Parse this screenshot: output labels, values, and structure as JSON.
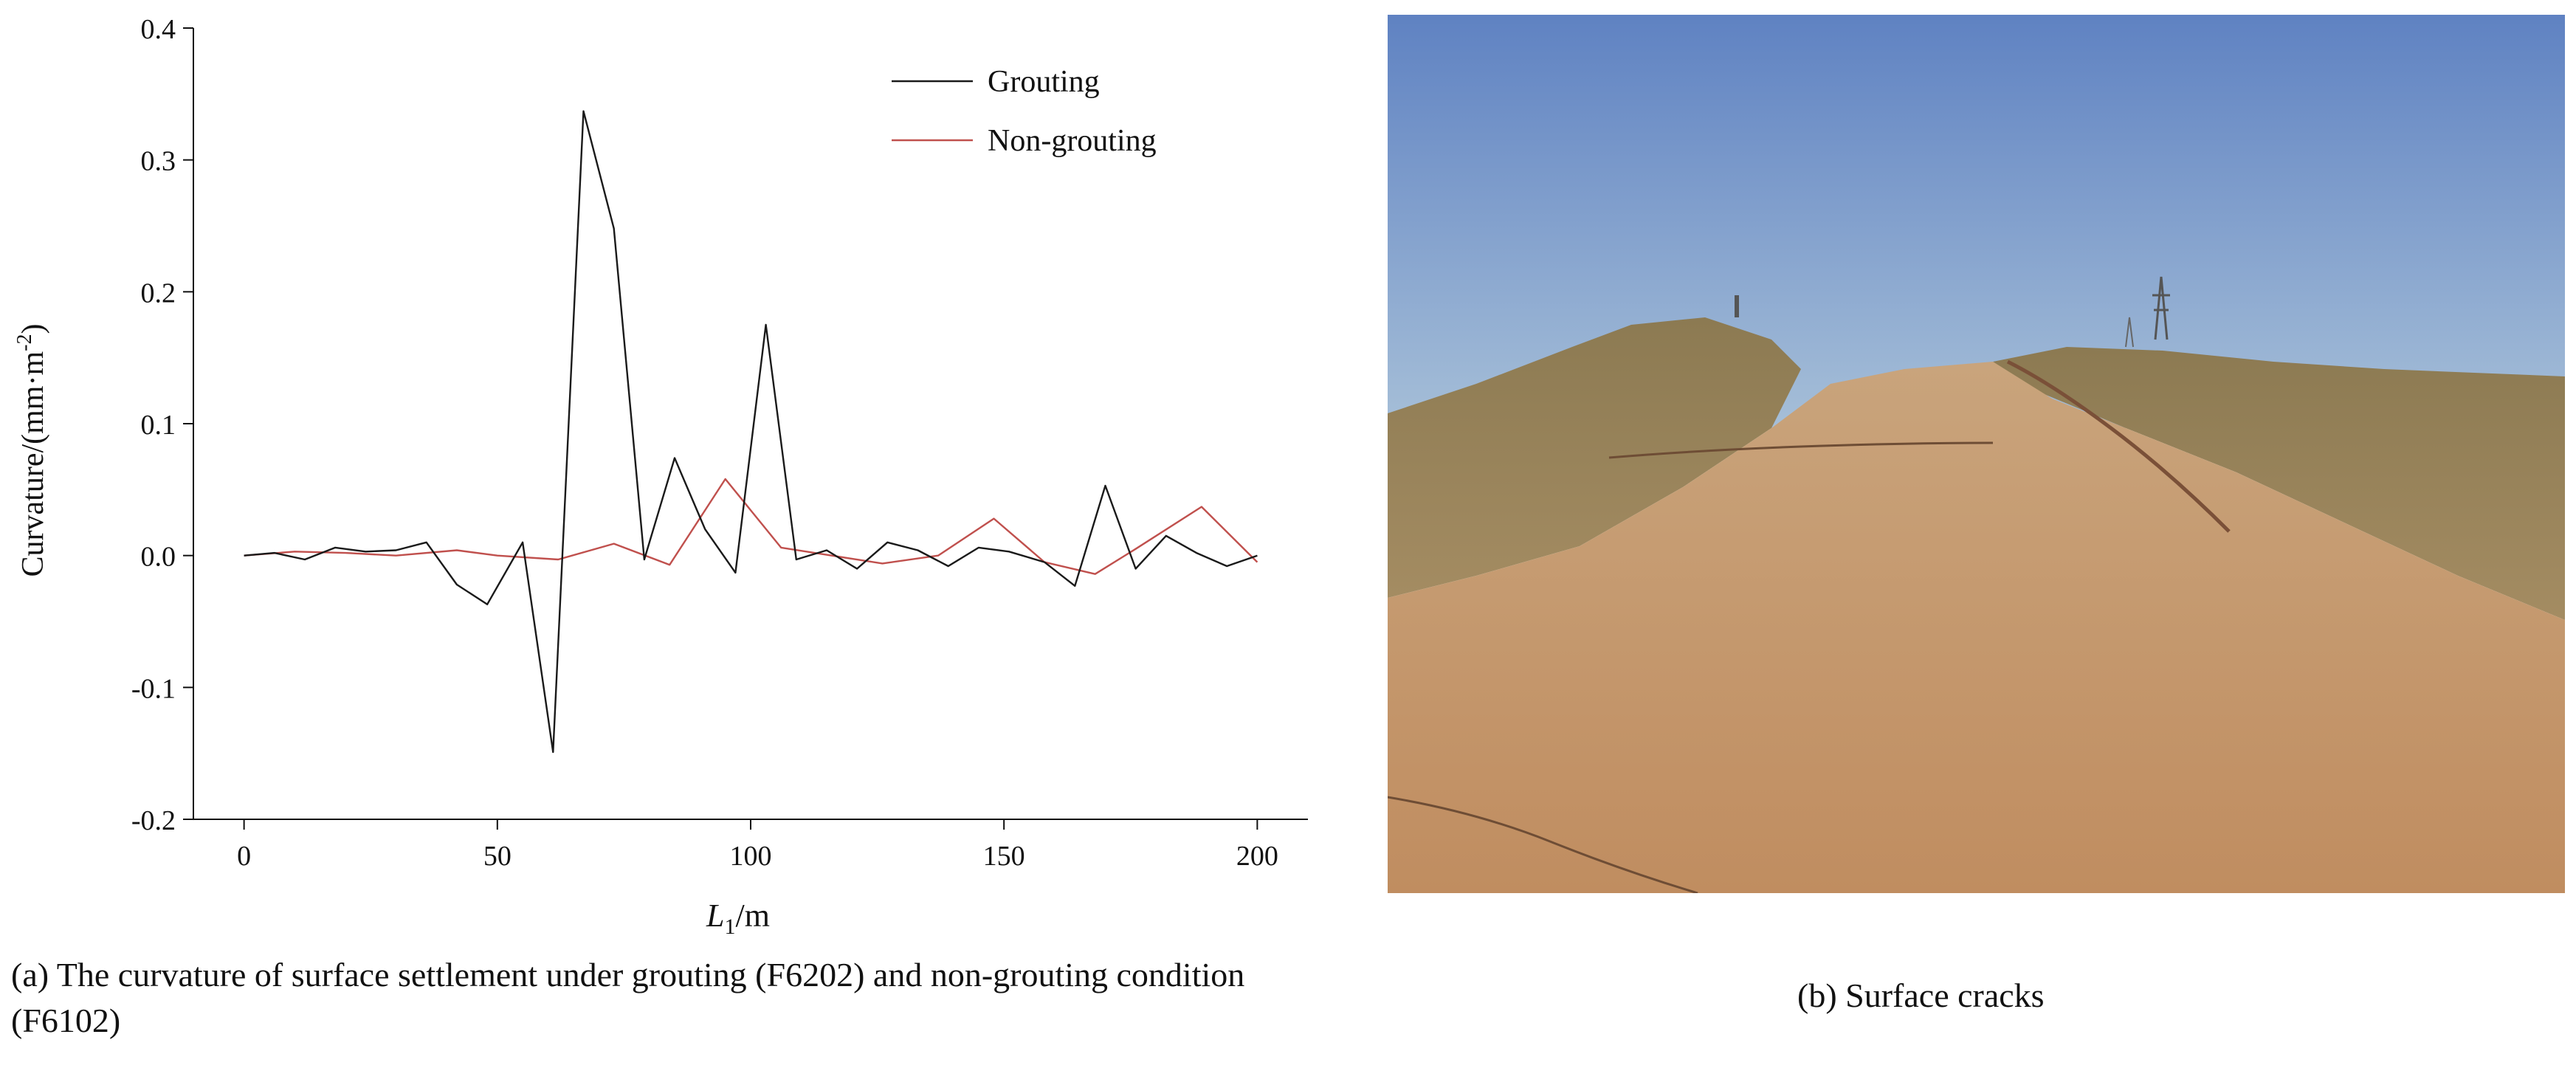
{
  "chart_data": {
    "type": "line",
    "xlabel_main": "L",
    "xlabel_sub": "1",
    "xlabel_unit": "/m",
    "ylabel_main": "Curvature/(mm·m",
    "ylabel_sup": "-2",
    "ylabel_end": ")",
    "xlim": [
      -10,
      210
    ],
    "ylim": [
      -0.2,
      0.4
    ],
    "xticks": [
      0,
      50,
      100,
      150,
      200
    ],
    "yticks": [
      -0.2,
      -0.1,
      0.0,
      0.1,
      0.2,
      0.3,
      0.4
    ],
    "xtick_labels": [
      "0",
      "50",
      "100",
      "150",
      "200"
    ],
    "ytick_labels": [
      "-0.2",
      "-0.1",
      "0.0",
      "0.1",
      "0.2",
      "0.3",
      "0.4"
    ],
    "legend_position": "top-right",
    "series": [
      {
        "name": "Grouting",
        "color": "#1a1a1a",
        "x": [
          0,
          6,
          12,
          18,
          24,
          30,
          36,
          42,
          48,
          55,
          61,
          67,
          73,
          79,
          85,
          91,
          97,
          103,
          109,
          115,
          121,
          127,
          133,
          139,
          145,
          151,
          158,
          164,
          170,
          176,
          182,
          188,
          194,
          200
        ],
        "y": [
          0.0,
          0.002,
          -0.003,
          0.006,
          0.003,
          0.004,
          0.01,
          -0.022,
          -0.037,
          0.01,
          -0.149,
          0.337,
          0.248,
          -0.003,
          0.074,
          0.02,
          -0.013,
          0.175,
          -0.003,
          0.004,
          -0.01,
          0.01,
          0.004,
          -0.008,
          0.006,
          0.003,
          -0.005,
          -0.023,
          0.053,
          -0.01,
          0.015,
          0.002,
          -0.008,
          0.0
        ]
      },
      {
        "name": "Non-grouting",
        "color": "#c0504d",
        "x": [
          0,
          10,
          20,
          30,
          42,
          50,
          62,
          73,
          84,
          95,
          106,
          116,
          126,
          137,
          148,
          158,
          168,
          176,
          189,
          200
        ],
        "y": [
          0.0,
          0.003,
          0.002,
          0.0,
          0.004,
          0.0,
          -0.003,
          0.009,
          -0.007,
          0.058,
          0.006,
          0.0,
          -0.006,
          0.0,
          0.028,
          -0.005,
          -0.014,
          0.005,
          0.037,
          -0.005
        ]
      }
    ]
  },
  "captions": {
    "a": "(a)  The curvature of surface settlement under grouting (F6202) and non-grouting condition (F6102)",
    "b": "(b) Surface cracks"
  },
  "colors": {
    "sky_top": "#5f82c2",
    "sky_bottom": "#a6bfd8",
    "ground": "#c49a6e",
    "vegetation": "#8f7b52"
  }
}
